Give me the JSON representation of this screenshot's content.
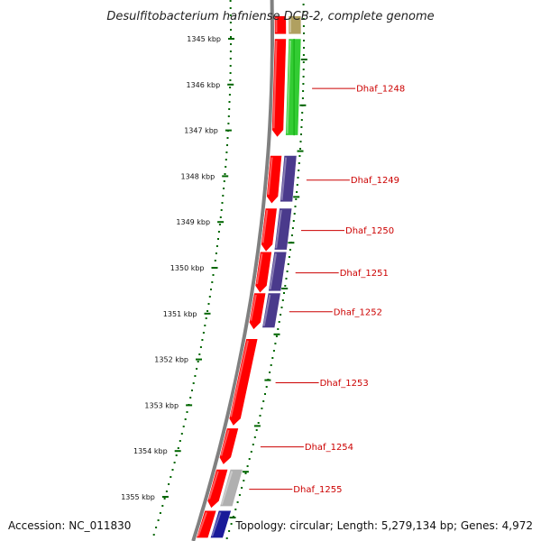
{
  "title": "Desulfitobacterium hafniense DCB-2, complete genome",
  "footer": {
    "accession": "Accession: NC_011830",
    "summary": "Topology: circular; Length: 5,279,134 bp; Genes: 4,972"
  },
  "colors": {
    "cds": "#ff0000",
    "backbone": "#808080",
    "tick": "#006600",
    "label": "#cc0000",
    "green": "#33cc33",
    "purple": "#4a3a8c",
    "grey": "#b0b0b0",
    "navy": "#1a1a99",
    "olive": "#b0a060"
  },
  "ticks": [
    {
      "kbp": 1345,
      "label": "1345 kbp"
    },
    {
      "kbp": 1346,
      "label": "1346 kbp"
    },
    {
      "kbp": 1347,
      "label": "1347 kbp"
    },
    {
      "kbp": 1348,
      "label": "1348 kbp"
    },
    {
      "kbp": 1349,
      "label": "1349 kbp"
    },
    {
      "kbp": 1350,
      "label": "1350 kbp"
    },
    {
      "kbp": 1351,
      "label": "1351 kbp"
    },
    {
      "kbp": 1352,
      "label": "1352 kbp"
    },
    {
      "kbp": 1353,
      "label": "1353 kbp"
    },
    {
      "kbp": 1354,
      "label": "1354 kbp"
    },
    {
      "kbp": 1355,
      "label": "1355 kbp"
    }
  ],
  "genes": [
    {
      "label": "Dhaf_1248",
      "start_kbp": 1345.0,
      "end_kbp": 1347.15,
      "category": "green"
    },
    {
      "label": "Dhaf_1249",
      "start_kbp": 1347.55,
      "end_kbp": 1348.6,
      "category": "purple"
    },
    {
      "label": "Dhaf_1250",
      "start_kbp": 1348.7,
      "end_kbp": 1349.65,
      "category": "purple"
    },
    {
      "label": "Dhaf_1251",
      "start_kbp": 1349.65,
      "end_kbp": 1350.55,
      "category": "purple"
    },
    {
      "label": "Dhaf_1252",
      "start_kbp": 1350.55,
      "end_kbp": 1351.35,
      "category": "purple"
    },
    {
      "label": "Dhaf_1253",
      "start_kbp": 1351.55,
      "end_kbp": 1353.45,
      "category": "none"
    },
    {
      "label": "Dhaf_1254",
      "start_kbp": 1353.5,
      "end_kbp": 1354.3,
      "category": "none"
    },
    {
      "label": "Dhaf_1255",
      "start_kbp": 1354.4,
      "end_kbp": 1355.25,
      "category": "grey"
    }
  ],
  "partial_genes": [
    {
      "start_kbp": 1344.5,
      "end_kbp": 1344.9,
      "category": "olive"
    },
    {
      "start_kbp": 1355.3,
      "end_kbp": 1355.9,
      "category": "navy"
    }
  ]
}
